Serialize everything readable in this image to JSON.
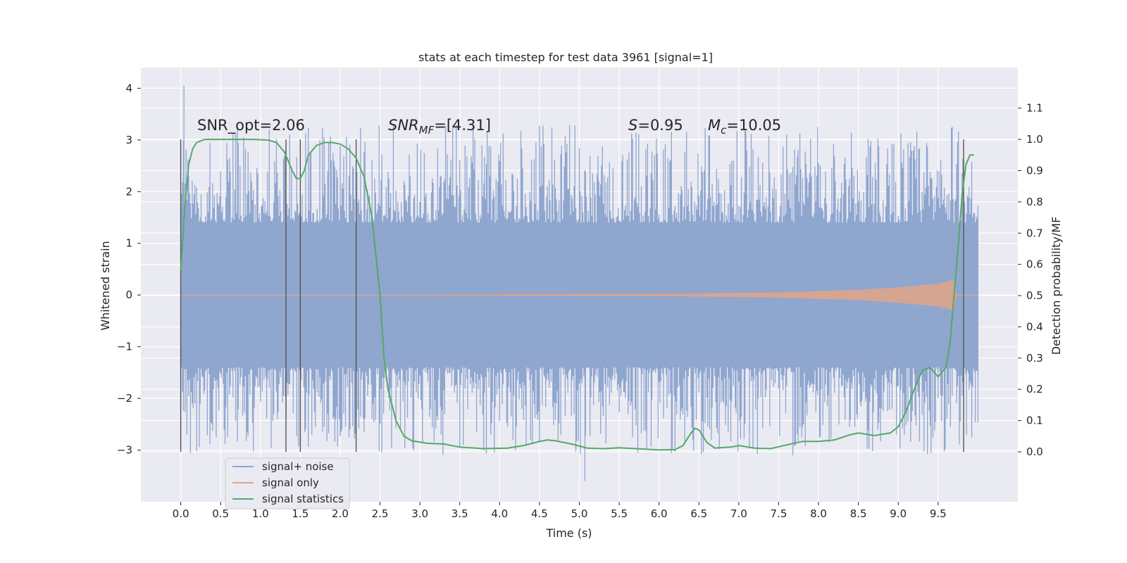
{
  "chart_data": {
    "type": "line",
    "title": "stats at each timestep for test data 3961 [signal=1]",
    "xlabel": "Time (s)",
    "ylabel": "Whitened strain",
    "y2label": "Detection probability/MF",
    "xlim": [
      -0.5,
      10.5
    ],
    "ylim": [
      -4.0,
      4.4
    ],
    "y2lim": [
      -0.16,
      1.23
    ],
    "grid": true,
    "legend_position": "lower-left",
    "x_ticks": [
      "0.0",
      "0.5",
      "1.0",
      "1.5",
      "2.0",
      "2.5",
      "3.0",
      "3.5",
      "4.0",
      "4.5",
      "5.0",
      "5.5",
      "6.0",
      "6.5",
      "7.0",
      "7.5",
      "8.0",
      "8.5",
      "9.0",
      "9.5"
    ],
    "y_ticks": [
      "4",
      "3",
      "2",
      "1",
      "0",
      "−1",
      "−2",
      "−3"
    ],
    "y2_ticks": [
      "1.1",
      "1.0",
      "0.9",
      "0.8",
      "0.7",
      "0.6",
      "0.5",
      "0.4",
      "0.3",
      "0.2",
      "0.1",
      "0.0"
    ],
    "annotations": {
      "snr_opt": "SNR_opt=2.06",
      "snr_mf_base": "SNR",
      "snr_mf_sub": "MF",
      "snr_mf_value": "=[4.31]",
      "s_label": "S",
      "s_value": "=0.95",
      "mc_base": "M",
      "mc_sub": "c",
      "mc_value": "=10.05"
    },
    "series": [
      {
        "name": "signal+ noise",
        "color": "#8fa6cf",
        "x_range": [
          0.0,
          10.0
        ],
        "band_upper": 1.4,
        "band_lower": -1.4,
        "spike_extremes": {
          "max": 4.05,
          "min": -3.6
        }
      },
      {
        "name": "signal only",
        "color": "#e0a488",
        "x_range": [
          0.0,
          10.0
        ],
        "envelope_points": [
          [
            0.0,
            0.0
          ],
          [
            6.0,
            0.02
          ],
          [
            7.5,
            0.05
          ],
          [
            8.5,
            0.1
          ],
          [
            9.0,
            0.15
          ],
          [
            9.5,
            0.22
          ],
          [
            9.7,
            0.3
          ],
          [
            9.73,
            0.0
          ]
        ]
      },
      {
        "name": "signal statistics",
        "color": "#55a868",
        "axis": "right",
        "points": [
          [
            0.0,
            0.58
          ],
          [
            0.05,
            0.78
          ],
          [
            0.1,
            0.92
          ],
          [
            0.15,
            0.97
          ],
          [
            0.2,
            0.99
          ],
          [
            0.3,
            1.0
          ],
          [
            0.5,
            1.0
          ],
          [
            0.7,
            1.0
          ],
          [
            0.9,
            1.0
          ],
          [
            1.1,
            0.998
          ],
          [
            1.2,
            0.99
          ],
          [
            1.3,
            0.96
          ],
          [
            1.4,
            0.9
          ],
          [
            1.45,
            0.875
          ],
          [
            1.5,
            0.875
          ],
          [
            1.55,
            0.9
          ],
          [
            1.6,
            0.95
          ],
          [
            1.7,
            0.98
          ],
          [
            1.8,
            0.99
          ],
          [
            1.9,
            0.99
          ],
          [
            2.0,
            0.985
          ],
          [
            2.1,
            0.97
          ],
          [
            2.2,
            0.94
          ],
          [
            2.3,
            0.88
          ],
          [
            2.4,
            0.75
          ],
          [
            2.5,
            0.5
          ],
          [
            2.55,
            0.3
          ],
          [
            2.6,
            0.2
          ],
          [
            2.7,
            0.1
          ],
          [
            2.8,
            0.05
          ],
          [
            2.9,
            0.035
          ],
          [
            3.1,
            0.027
          ],
          [
            3.3,
            0.025
          ],
          [
            3.5,
            0.015
          ],
          [
            3.8,
            0.01
          ],
          [
            4.1,
            0.012
          ],
          [
            4.3,
            0.02
          ],
          [
            4.5,
            0.033
          ],
          [
            4.6,
            0.038
          ],
          [
            4.7,
            0.035
          ],
          [
            4.9,
            0.025
          ],
          [
            5.1,
            0.012
          ],
          [
            5.3,
            0.01
          ],
          [
            5.5,
            0.013
          ],
          [
            5.7,
            0.01
          ],
          [
            6.0,
            0.006
          ],
          [
            6.2,
            0.007
          ],
          [
            6.3,
            0.02
          ],
          [
            6.4,
            0.06
          ],
          [
            6.45,
            0.075
          ],
          [
            6.5,
            0.07
          ],
          [
            6.6,
            0.03
          ],
          [
            6.7,
            0.012
          ],
          [
            6.9,
            0.015
          ],
          [
            7.0,
            0.02
          ],
          [
            7.2,
            0.012
          ],
          [
            7.4,
            0.01
          ],
          [
            7.6,
            0.022
          ],
          [
            7.8,
            0.033
          ],
          [
            8.0,
            0.033
          ],
          [
            8.2,
            0.038
          ],
          [
            8.4,
            0.055
          ],
          [
            8.5,
            0.06
          ],
          [
            8.7,
            0.052
          ],
          [
            8.9,
            0.06
          ],
          [
            9.0,
            0.08
          ],
          [
            9.1,
            0.13
          ],
          [
            9.2,
            0.2
          ],
          [
            9.3,
            0.26
          ],
          [
            9.4,
            0.27
          ],
          [
            9.5,
            0.24
          ],
          [
            9.6,
            0.27
          ],
          [
            9.65,
            0.35
          ],
          [
            9.7,
            0.5
          ],
          [
            9.75,
            0.65
          ],
          [
            9.8,
            0.82
          ],
          [
            9.85,
            0.92
          ],
          [
            9.9,
            0.95
          ],
          [
            9.95,
            0.95
          ]
        ]
      }
    ],
    "vertical_markers_x": [
      0.0,
      1.32,
      1.5,
      2.2,
      9.82
    ]
  }
}
